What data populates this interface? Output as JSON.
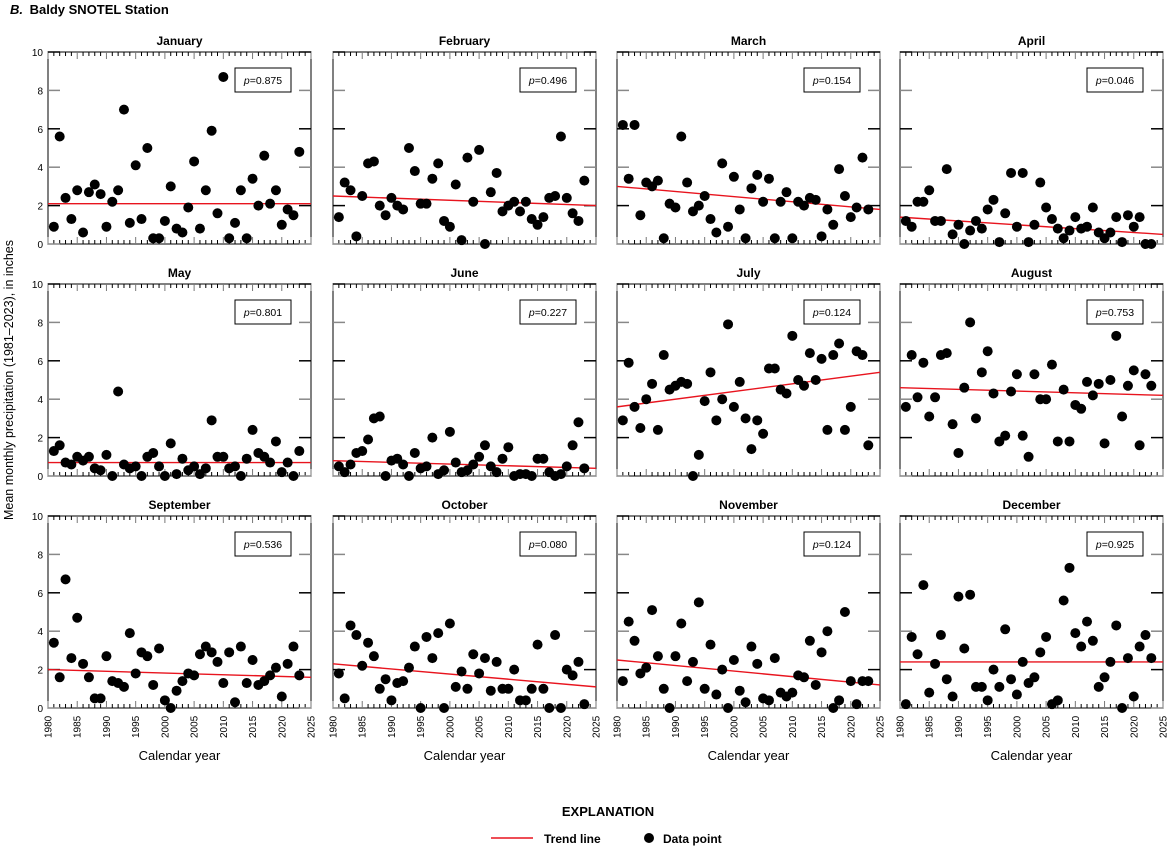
{
  "figure_title_letter": "B.",
  "figure_title": "Baldy SNOTEL Station",
  "ylabel": "Mean monthly precipitation (1981–2023), in inches",
  "xlabel": "Calendar year",
  "legend": {
    "title": "EXPLANATION",
    "trend_label": "Trend line",
    "point_label": "Data point"
  },
  "colors": {
    "trend": "#e8141e",
    "point": "#000000",
    "axis": "#000000"
  },
  "chart_data": {
    "type": "scatter",
    "xlim": [
      1980,
      2025
    ],
    "ylim": [
      0,
      10
    ],
    "xticks": [
      1980,
      1985,
      1990,
      1995,
      2000,
      2005,
      2010,
      2015,
      2020,
      2025
    ],
    "yticks": [
      0,
      2,
      4,
      6,
      8,
      10
    ],
    "years": [
      1981,
      1982,
      1983,
      1984,
      1985,
      1986,
      1987,
      1988,
      1989,
      1990,
      1991,
      1992,
      1993,
      1994,
      1995,
      1996,
      1997,
      1998,
      1999,
      2000,
      2001,
      2002,
      2003,
      2004,
      2005,
      2006,
      2007,
      2008,
      2009,
      2010,
      2011,
      2012,
      2013,
      2014,
      2015,
      2016,
      2017,
      2018,
      2019,
      2020,
      2021,
      2022,
      2023
    ],
    "panels": [
      {
        "month": "January",
        "p": "0.875",
        "trend": [
          2.1,
          2.1
        ],
        "values": [
          0.9,
          5.6,
          2.4,
          1.3,
          2.8,
          0.6,
          2.7,
          3.1,
          2.6,
          0.9,
          2.2,
          2.8,
          7.0,
          1.1,
          4.1,
          1.3,
          5.0,
          0.3,
          0.3,
          1.2,
          3.0,
          0.8,
          0.6,
          1.9,
          4.3,
          0.8,
          2.8,
          5.9,
          1.6,
          8.7,
          0.3,
          1.1,
          2.8,
          0.3,
          3.4,
          2.0,
          4.6,
          2.1,
          2.8,
          1.0,
          1.8,
          1.5,
          4.8
        ]
      },
      {
        "month": "February",
        "p": "0.496",
        "trend": [
          2.5,
          2.0
        ],
        "values": [
          1.4,
          3.2,
          2.8,
          0.4,
          2.5,
          4.2,
          4.3,
          2.0,
          1.5,
          2.4,
          2.0,
          1.8,
          5.0,
          3.8,
          2.1,
          2.1,
          3.4,
          4.2,
          1.2,
          0.9,
          3.1,
          0.2,
          4.5,
          2.2,
          4.9,
          0.0,
          2.7,
          3.7,
          1.7,
          2.0,
          2.2,
          1.7,
          2.2,
          1.3,
          1.0,
          1.4,
          2.4,
          2.5,
          5.6,
          2.4,
          1.6,
          1.2,
          3.3
        ]
      },
      {
        "month": "March",
        "p": "0.154",
        "trend": [
          3.0,
          1.8
        ],
        "values": [
          6.2,
          3.4,
          6.2,
          1.5,
          3.2,
          3.0,
          3.3,
          0.3,
          2.1,
          1.9,
          5.6,
          3.2,
          1.7,
          2.0,
          2.5,
          1.3,
          0.6,
          4.2,
          0.9,
          3.5,
          1.8,
          0.3,
          2.9,
          3.6,
          2.2,
          3.4,
          0.3,
          2.2,
          2.7,
          0.3,
          2.2,
          2.0,
          2.4,
          2.3,
          0.4,
          1.8,
          1.0,
          3.9,
          2.5,
          1.4,
          1.9,
          4.5,
          1.8
        ]
      },
      {
        "month": "April",
        "p": "0.046",
        "trend": [
          1.4,
          0.5
        ],
        "values": [
          1.2,
          0.9,
          2.2,
          2.2,
          2.8,
          1.2,
          1.2,
          3.9,
          0.5,
          1.0,
          0.0,
          0.7,
          1.2,
          0.8,
          1.8,
          2.3,
          0.1,
          1.6,
          3.7,
          0.9,
          3.7,
          0.1,
          1.0,
          3.2,
          1.9,
          1.3,
          0.8,
          0.3,
          0.7,
          1.4,
          0.8,
          0.9,
          1.9,
          0.6,
          0.3,
          0.6,
          1.4,
          0.1,
          1.5,
          0.9,
          1.4,
          0.0,
          0.0
        ]
      },
      {
        "month": "May",
        "p": "0.801",
        "trend": [
          0.7,
          0.7
        ],
        "values": [
          1.3,
          1.6,
          0.7,
          0.6,
          1.0,
          0.8,
          1.0,
          0.4,
          0.3,
          1.1,
          0.0,
          4.4,
          0.6,
          0.4,
          0.5,
          0.0,
          1.0,
          1.2,
          0.5,
          0.0,
          1.7,
          0.1,
          0.9,
          0.3,
          0.5,
          0.1,
          0.4,
          2.9,
          1.0,
          1.0,
          0.4,
          0.5,
          0.0,
          0.9,
          2.4,
          1.2,
          1.0,
          0.7,
          1.8,
          0.2,
          0.7,
          0.0,
          1.3
        ]
      },
      {
        "month": "June",
        "p": "0.227",
        "trend": [
          0.8,
          0.4
        ],
        "values": [
          0.5,
          0.2,
          0.6,
          1.2,
          1.3,
          1.9,
          3.0,
          3.1,
          0.0,
          0.8,
          0.9,
          0.6,
          0.0,
          1.2,
          0.4,
          0.5,
          2.0,
          0.1,
          0.3,
          2.3,
          0.7,
          0.2,
          0.3,
          0.6,
          1.0,
          1.6,
          0.5,
          0.2,
          0.9,
          1.5,
          0.0,
          0.1,
          0.1,
          0.0,
          0.9,
          0.9,
          0.2,
          0.0,
          0.1,
          0.5,
          1.6,
          2.8,
          0.4
        ]
      },
      {
        "month": "July",
        "p": "0.124",
        "trend": [
          3.6,
          5.4
        ],
        "values": [
          2.9,
          5.9,
          3.6,
          2.5,
          4.0,
          4.8,
          2.4,
          6.3,
          4.5,
          4.7,
          4.9,
          4.8,
          0.0,
          1.1,
          3.9,
          5.4,
          2.9,
          4.0,
          7.9,
          3.6,
          4.9,
          3.0,
          1.4,
          2.9,
          2.2,
          5.6,
          5.6,
          4.5,
          4.3,
          7.3,
          5.0,
          4.7,
          6.4,
          5.0,
          6.1,
          2.4,
          6.3,
          6.9,
          2.4,
          3.6,
          6.5,
          6.3,
          1.6
        ]
      },
      {
        "month": "August",
        "p": "0.753",
        "trend": [
          4.6,
          4.2
        ],
        "values": [
          3.6,
          6.3,
          4.1,
          5.9,
          3.1,
          4.1,
          6.3,
          6.4,
          2.7,
          1.2,
          4.6,
          8.0,
          3.0,
          5.4,
          6.5,
          4.3,
          1.8,
          2.1,
          4.4,
          5.3,
          2.1,
          1.0,
          5.3,
          4.0,
          4.0,
          5.8,
          1.8,
          4.5,
          1.8,
          3.7,
          3.5,
          4.9,
          4.2,
          4.8,
          1.7,
          5.0,
          7.3,
          3.1,
          4.7,
          5.5,
          1.6,
          5.3,
          4.7
        ]
      },
      {
        "month": "September",
        "p": "0.536",
        "trend": [
          2.0,
          1.6
        ],
        "values": [
          3.4,
          1.6,
          6.7,
          2.6,
          4.7,
          2.3,
          1.6,
          0.5,
          0.5,
          2.7,
          1.4,
          1.3,
          1.1,
          3.9,
          1.8,
          2.9,
          2.7,
          1.2,
          3.1,
          0.4,
          0.0,
          0.9,
          1.4,
          1.8,
          1.7,
          2.8,
          3.2,
          2.9,
          2.4,
          1.3,
          2.9,
          0.3,
          3.2,
          1.3,
          2.5,
          1.2,
          1.4,
          1.7,
          2.1,
          0.6,
          2.3,
          3.2,
          1.7
        ]
      },
      {
        "month": "October",
        "p": "0.080",
        "trend": [
          2.3,
          1.1
        ],
        "values": [
          1.8,
          0.5,
          4.3,
          3.8,
          2.2,
          3.4,
          2.7,
          1.0,
          1.5,
          0.4,
          1.3,
          1.4,
          2.1,
          3.2,
          0.0,
          3.7,
          2.6,
          3.9,
          0.0,
          4.4,
          1.1,
          1.9,
          1.0,
          2.8,
          1.8,
          2.6,
          0.9,
          2.4,
          1.0,
          1.0,
          2.0,
          0.4,
          0.4,
          1.0,
          3.3,
          1.0,
          0.0,
          3.8,
          0.0,
          2.0,
          1.7,
          2.4,
          0.2
        ]
      },
      {
        "month": "November",
        "p": "0.124",
        "trend": [
          2.5,
          1.2
        ],
        "values": [
          1.4,
          4.5,
          3.5,
          1.8,
          2.1,
          5.1,
          2.7,
          1.0,
          0.0,
          2.7,
          4.4,
          1.4,
          2.4,
          5.5,
          1.0,
          3.3,
          0.7,
          2.0,
          0.0,
          2.5,
          0.9,
          0.3,
          3.2,
          2.3,
          0.5,
          0.4,
          2.6,
          0.8,
          0.6,
          0.8,
          1.7,
          1.6,
          3.5,
          1.2,
          2.9,
          4.0,
          0.0,
          0.4,
          5.0,
          1.4,
          0.2,
          1.4,
          1.4
        ]
      },
      {
        "month": "December",
        "p": "0.925",
        "trend": [
          2.4,
          2.4
        ],
        "values": [
          0.2,
          3.7,
          2.8,
          6.4,
          0.8,
          2.3,
          3.8,
          1.5,
          0.6,
          5.8,
          3.1,
          5.9,
          1.1,
          1.1,
          0.4,
          2.0,
          1.1,
          4.1,
          1.5,
          0.7,
          2.4,
          1.3,
          1.6,
          2.9,
          3.7,
          0.2,
          0.4,
          5.6,
          7.3,
          3.9,
          3.2,
          4.5,
          3.5,
          1.1,
          1.6,
          2.4,
          4.3,
          0.0,
          2.6,
          0.6,
          3.2,
          3.8,
          2.6
        ]
      }
    ]
  }
}
